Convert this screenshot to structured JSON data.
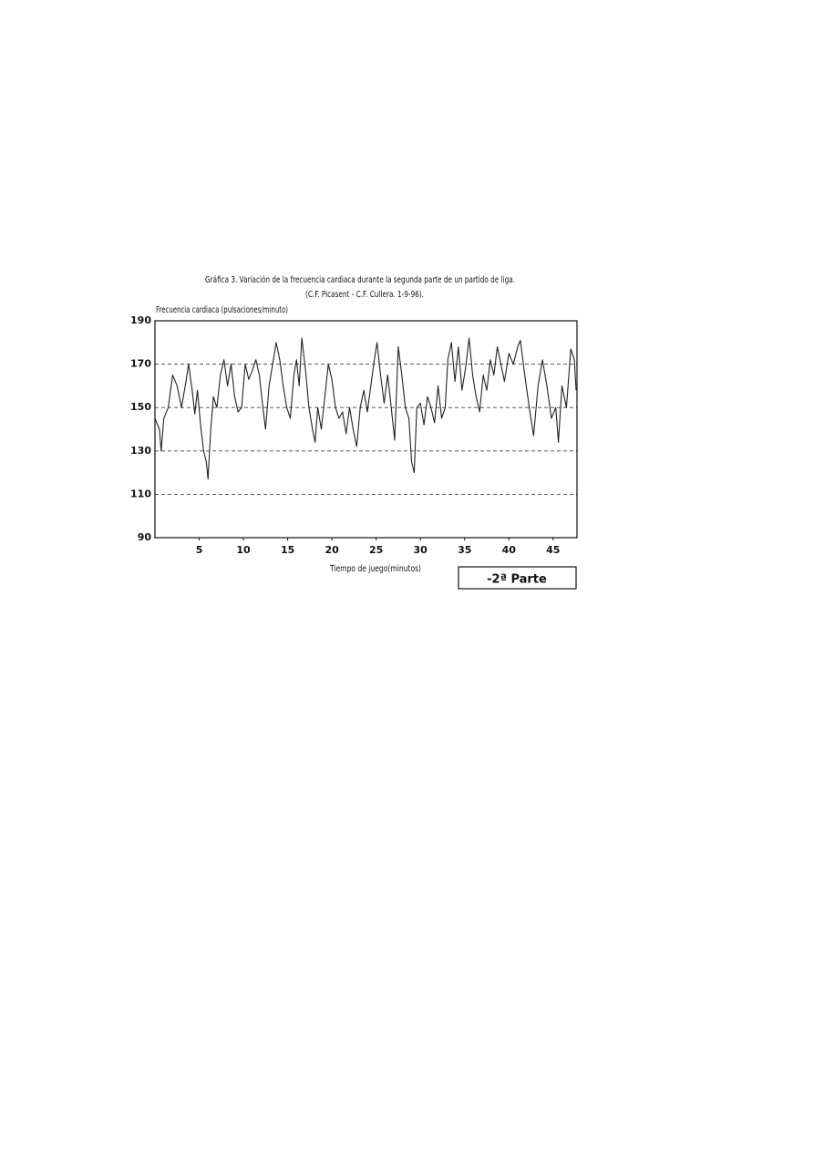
{
  "chart_data": {
    "type": "line",
    "title": "Gráfica 3. Variación de la frecuencia cardiaca durante la segunda parte de un partido de liga.",
    "subtitle": "(C.F. Picasent - C.F. Cullera. 1-9-96).",
    "y_label": "Frecuencia cardiaca (pulsaciones/minuto)",
    "x_label": "Tiempo de juego(minutos)",
    "annotation": "-2ª Parte",
    "color": "#222222",
    "grid": true,
    "xlim": [
      0,
      47.7
    ],
    "xticks": [
      5,
      10,
      15,
      20,
      25,
      30,
      35,
      40,
      45
    ],
    "ylim": [
      90,
      190
    ],
    "yticks": [
      90,
      110,
      130,
      150,
      170,
      190
    ],
    "x": [
      0,
      0.5,
      0.7,
      1,
      1.5,
      2,
      2.5,
      3,
      3.5,
      3.8,
      4.2,
      4.5,
      4.8,
      5.2,
      5.5,
      5.8,
      6,
      6.3,
      6.6,
      7,
      7.4,
      7.8,
      8.2,
      8.6,
      9,
      9.4,
      9.8,
      10.2,
      10.6,
      11,
      11.4,
      11.8,
      12.2,
      12.5,
      12.9,
      13.3,
      13.7,
      14.1,
      14.5,
      14.9,
      15.3,
      15.7,
      16,
      16.3,
      16.6,
      17,
      17.4,
      17.8,
      18.1,
      18.4,
      18.8,
      19.2,
      19.6,
      20,
      20.4,
      20.8,
      21.2,
      21.6,
      22,
      22.4,
      22.8,
      23.2,
      23.6,
      24,
      24.4,
      24.8,
      25.1,
      25.5,
      25.9,
      26.3,
      26.7,
      27.1,
      27.5,
      27.9,
      28.3,
      28.7,
      29,
      29.3,
      29.6,
      30,
      30.4,
      30.8,
      31.2,
      31.6,
      32,
      32.4,
      32.8,
      33.1,
      33.5,
      33.9,
      34.3,
      34.7,
      35.1,
      35.5,
      35.9,
      36.3,
      36.7,
      37.1,
      37.5,
      37.9,
      38.3,
      38.7,
      39.1,
      39.5,
      40,
      40.5,
      41,
      41.3,
      41.8,
      42.3,
      42.8,
      43.3,
      43.8,
      44.3,
      44.8,
      45.3,
      45.6,
      46,
      46.5,
      47,
      47.4,
      47.6
    ],
    "values": [
      145,
      140,
      130,
      145,
      150,
      165,
      160,
      150,
      162,
      170,
      158,
      147,
      158,
      140,
      130,
      125,
      117,
      140,
      155,
      150,
      165,
      172,
      160,
      170,
      155,
      148,
      150,
      170,
      163,
      167,
      172,
      165,
      150,
      140,
      160,
      170,
      180,
      172,
      160,
      150,
      145,
      165,
      172,
      160,
      182,
      168,
      150,
      140,
      134,
      150,
      140,
      155,
      170,
      163,
      150,
      145,
      148,
      138,
      150,
      140,
      132,
      150,
      158,
      148,
      160,
      172,
      180,
      165,
      152,
      165,
      150,
      135,
      178,
      165,
      150,
      145,
      125,
      120,
      150,
      152,
      142,
      155,
      150,
      143,
      160,
      145,
      150,
      172,
      180,
      162,
      178,
      158,
      168,
      182,
      165,
      155,
      148,
      165,
      158,
      172,
      165,
      178,
      170,
      162,
      175,
      170,
      178,
      181,
      165,
      150,
      137,
      160,
      172,
      160,
      145,
      150,
      134,
      160,
      150,
      177,
      172,
      158
    ]
  }
}
